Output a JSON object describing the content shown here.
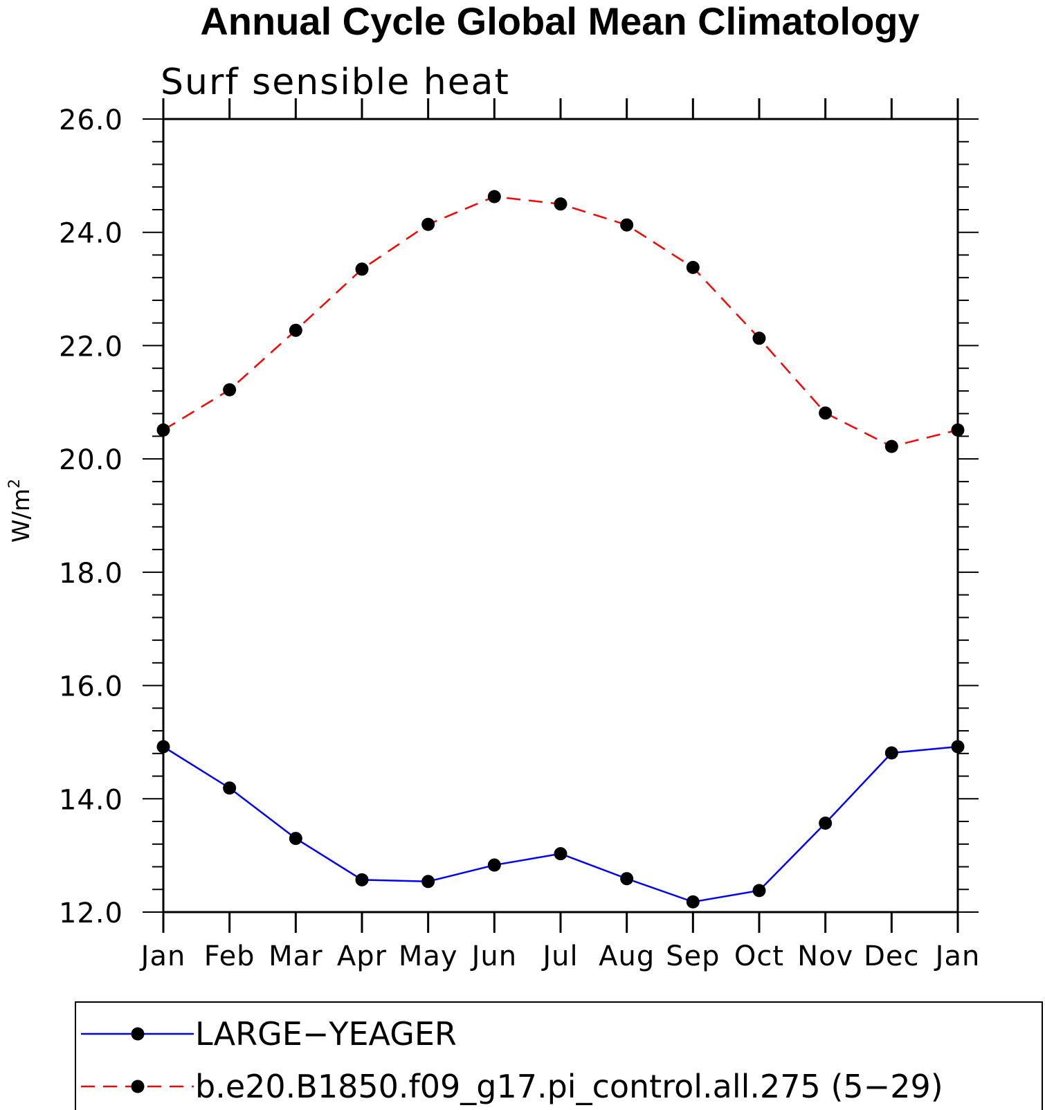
{
  "chart_data": {
    "type": "line",
    "title": "Annual Cycle Global Mean Climatology",
    "subtitle": "Surf sensible heat",
    "ylabel_base": "W/m",
    "ylabel_sup": "2",
    "xlabel": "",
    "categories": [
      "Jan",
      "Feb",
      "Mar",
      "Apr",
      "May",
      "Jun",
      "Jul",
      "Aug",
      "Sep",
      "Oct",
      "Nov",
      "Dec",
      "Jan"
    ],
    "ylim": [
      12.0,
      26.0
    ],
    "yticks": [
      "12.0",
      "14.0",
      "16.0",
      "18.0",
      "20.0",
      "22.0",
      "24.0",
      "26.0"
    ],
    "series": [
      {
        "name": "LARGE−YEAGER",
        "color": "#0000ff",
        "style": "solid",
        "values": [
          14.92,
          14.19,
          13.3,
          12.57,
          12.54,
          12.83,
          13.03,
          12.59,
          12.18,
          12.38,
          13.57,
          14.81,
          14.92
        ]
      },
      {
        "name": "b.e20.B1850.f09_g17.pi_control.all.275 (5−29)",
        "color": "#ff0000",
        "style": "dashed",
        "values": [
          20.51,
          21.22,
          22.27,
          23.35,
          24.14,
          24.63,
          24.5,
          24.13,
          23.38,
          22.13,
          20.81,
          20.22,
          20.51
        ]
      }
    ],
    "legend_position": "bottom",
    "grid": false
  }
}
